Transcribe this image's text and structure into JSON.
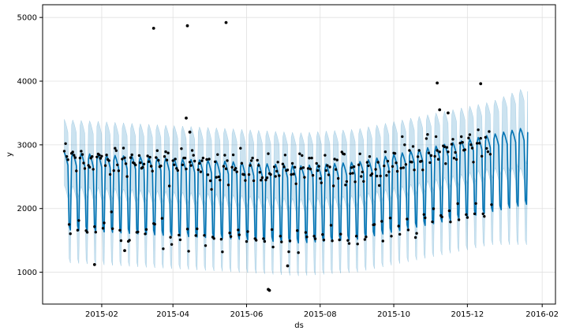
{
  "chart_data": {
    "type": "line",
    "title": "",
    "xlabel": "ds",
    "ylabel": "y",
    "x_range": [
      "2014-12-14",
      "2016-02-12"
    ],
    "ylim": [
      500,
      5200
    ],
    "grid": true,
    "x_ticks": [
      "2015-02",
      "2015-04",
      "2015-06",
      "2015-08",
      "2015-10",
      "2015-12",
      "2016-02"
    ],
    "y_ticks": [
      1000,
      2000,
      3000,
      4000,
      5000
    ],
    "colors": {
      "forecast_line": "#0072B2",
      "uncertainty_band": "#0072B2",
      "points": "#000000",
      "grid": "#e0e0e0",
      "axis": "#000000"
    },
    "observed_range": [
      "2015-01-01",
      "2015-12-21"
    ],
    "forecast_range": [
      "2015-01-01",
      "2016-01-20"
    ],
    "trend": [
      {
        "date": "2015-01-01",
        "value": 2500
      },
      {
        "date": "2015-03-15",
        "value": 2420
      },
      {
        "date": "2015-05-15",
        "value": 2360
      },
      {
        "date": "2015-07-15",
        "value": 2290
      },
      {
        "date": "2015-09-01",
        "value": 2350
      },
      {
        "date": "2015-10-15",
        "value": 2520
      },
      {
        "date": "2015-12-01",
        "value": 2700
      },
      {
        "date": "2016-01-20",
        "value": 2900
      }
    ],
    "weekly_profile": [
      380,
      330,
      260,
      180,
      -760,
      -830,
      300
    ],
    "uncertainty_half_width": 520,
    "observation_noise": 160,
    "outliers": [
      {
        "date": "2015-03-16",
        "value": 4830
      },
      {
        "date": "2015-04-13",
        "value": 4870
      },
      {
        "date": "2015-05-15",
        "value": 4920
      },
      {
        "date": "2015-11-06",
        "value": 3970
      },
      {
        "date": "2015-12-12",
        "value": 3960
      },
      {
        "date": "2015-04-12",
        "value": 3420
      },
      {
        "date": "2015-04-15",
        "value": 3200
      },
      {
        "date": "2015-06-19",
        "value": 730
      },
      {
        "date": "2015-06-20",
        "value": 715
      },
      {
        "date": "2015-01-26",
        "value": 1120
      },
      {
        "date": "2015-02-20",
        "value": 1340
      },
      {
        "date": "2015-07-05",
        "value": 1100
      },
      {
        "date": "2015-11-08",
        "value": 3550
      },
      {
        "date": "2015-11-15",
        "value": 3500
      }
    ]
  }
}
